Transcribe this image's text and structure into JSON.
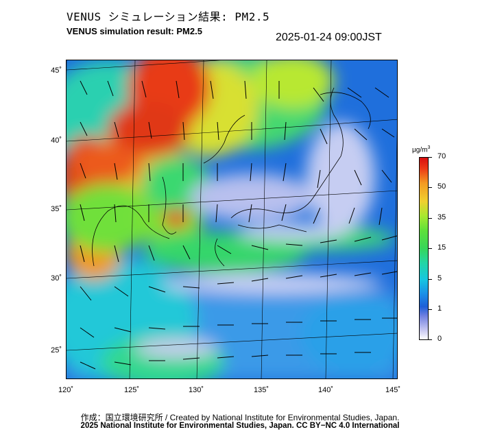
{
  "header": {
    "title_jp": "VENUS シミュレーション結果: PM2.5",
    "title_en": "VENUS simulation result: PM2.5",
    "datetime": "2025-01-24 09:00JST"
  },
  "map": {
    "latitude_labels": [
      "45˚",
      "40˚",
      "35˚",
      "30˚",
      "25˚"
    ],
    "longitude_labels": [
      "120˚",
      "125˚",
      "130˚",
      "135˚",
      "140˚",
      "145˚"
    ]
  },
  "colorbar": {
    "unit": "μg/m",
    "unit_superscript": "3",
    "tick_labels": [
      "70",
      "50",
      "35",
      "15",
      "5",
      "1",
      "0"
    ],
    "colors": {
      "very_low": "#ffffff",
      "low": "#1f5fd8",
      "mid": "#22d6a6",
      "moderate": "#5fe03a",
      "high": "#f39a22",
      "very_high": "#d81010"
    }
  },
  "footer": {
    "credit_line_1": "作成：国立環境研究所 / Created by National Institute for Environmental Studies, Japan.",
    "credit_line_2": "2025 National Institute for Environmental Studies, Japan. CC BY−NC 4.0 International"
  }
}
